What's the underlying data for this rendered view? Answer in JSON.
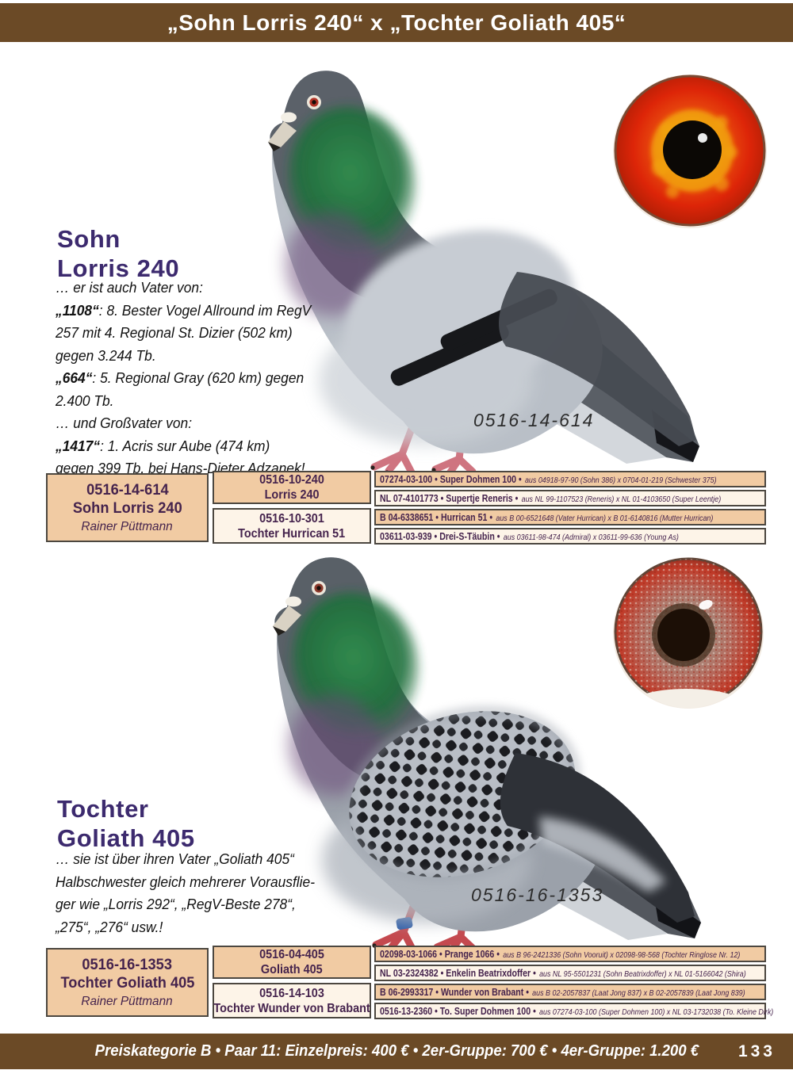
{
  "banner": {
    "title": "„Sohn Lorris 240“ x „Tochter Goliath 405“"
  },
  "footer": {
    "price_line": "Preiskategorie B • Paar 11: Einzelpreis: 400 € • 2er-Gruppe: 700 € • 4er-Gruppe: 1.200 €",
    "page_number": "133"
  },
  "colors": {
    "banner_brown": "#6b4a26",
    "cell_tan": "#f1cba3",
    "cell_cream": "#fdf4e8",
    "pedigree_text": "#45234d",
    "title_purple": "#3c2a6e",
    "eye1_iris_red": "#dd2508",
    "eye1_ring_yellow": "#f6c70a",
    "eye2_iris_red": "#c03a28"
  },
  "sections": [
    {
      "title_lines": [
        "Sohn",
        "Lorris 240"
      ],
      "photo_ring": "0516-14-614",
      "photo_alt": "blue-bar racing pigeon standing, facing left",
      "eye_alt": "red-yellow pigeon eye close-up",
      "description": [
        [
          {
            "t": "… er ist auch Vater von:"
          }
        ],
        [
          {
            "t": "„1108“",
            "b": 1
          },
          {
            "t": ": 8. Bester Vogel Allround im RegV"
          }
        ],
        [
          {
            "t": "257 mit 4. Regional St. Dizier (502 km)"
          }
        ],
        [
          {
            "t": "gegen 3.244 Tb."
          }
        ],
        [
          {
            "t": "„664“",
            "b": 1
          },
          {
            "t": ": 5. Regional Gray (620 km) gegen"
          }
        ],
        [
          {
            "t": "2.400 Tb."
          }
        ],
        [
          {
            "t": "… und Großvater von:"
          }
        ],
        [
          {
            "t": "„1417“",
            "b": 1
          },
          {
            "t": ": 1. Acris sur Aube (474 km)"
          }
        ],
        [
          {
            "t": "gegen 399 Tb. bei Hans-Dieter Adzanek!"
          }
        ]
      ],
      "subject": {
        "ring": "0516-14-614",
        "name": "Sohn Lorris 240",
        "owner": "Rainer Püttmann"
      },
      "parents": [
        {
          "ring": "0516-10-240",
          "name": "Lorris 240"
        },
        {
          "ring": "0516-10-301",
          "name": "Tochter Hurrican 51"
        }
      ],
      "grandparents": [
        {
          "main": "07274-03-100 • Super Dohmen 100 •",
          "detail": "aus 04918-97-90 (Sohn 386) x 0704-01-219 (Schwester 375)"
        },
        {
          "main": "NL 07-4101773 • Supertje Reneris •",
          "detail": "aus NL 99-1107523 (Reneris) x NL 01-4103650 (Super Leentje)"
        },
        {
          "main": "B 04-6338651 • Hurrican 51 •",
          "detail": "aus B 00-6521648 (Vater Hurrican) x B 01-6140816 (Mutter Hurrican)"
        },
        {
          "main": "03611-03-939 • Drei-S-Täubin •",
          "detail": "aus 03611-98-474 (Admiral) x 03611-99-636 (Young As)"
        }
      ]
    },
    {
      "title_lines": [
        "Tochter",
        "Goliath 405"
      ],
      "photo_ring": "0516-16-1353",
      "photo_alt": "blue-checker racing pigeon standing, facing left, blue leg band",
      "eye_alt": "speckled red-pearl pigeon eye close-up",
      "description": [
        [
          {
            "t": "… sie ist über ihren Vater „Goliath 405“"
          }
        ],
        [
          {
            "t": "Halbschwester gleich mehrerer Vorausflie-"
          }
        ],
        [
          {
            "t": "ger wie „Lorris 292“, „RegV-Beste 278“,"
          }
        ],
        [
          {
            "t": "„275“, „276“ usw.!"
          }
        ]
      ],
      "subject": {
        "ring": "0516-16-1353",
        "name": "Tochter Goliath 405",
        "owner": "Rainer Püttmann"
      },
      "parents": [
        {
          "ring": "0516-04-405",
          "name": "Goliath 405"
        },
        {
          "ring": "0516-14-103",
          "name": "Tochter Wunder von Brabant"
        }
      ],
      "grandparents": [
        {
          "main": "02098-03-1066 • Prange 1066 •",
          "detail": "aus B 96-2421336 (Sohn Vooruit) x 02098-98-568 (Tochter Ringlose Nr. 12)"
        },
        {
          "main": "NL 03-2324382 • Enkelin Beatrixdoffer •",
          "detail": "aus NL 95-5501231 (Sohn Beatrixdoffer) x NL 01-5166042 (Shira)"
        },
        {
          "main": "B 06-2993317 • Wunder von Brabant •",
          "detail": "aus B 02-2057837 (Laat Jong 837) x B 02-2057839 (Laat Jong 839)"
        },
        {
          "main": "0516-13-2360 • To. Super Dohmen 100 •",
          "detail": "aus 07274-03-100 (Super Dohmen 100) x NL 03-1732038 (To. Kleine Dirk)"
        }
      ]
    }
  ]
}
